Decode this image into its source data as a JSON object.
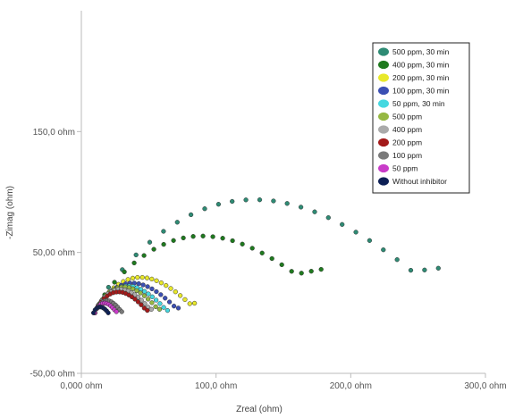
{
  "chart_data": {
    "type": "scatter",
    "title": "",
    "xlabel": "Zreal (ohm)",
    "ylabel": "-Zimag (ohm)",
    "xlim": [
      0,
      300
    ],
    "ylim": [
      -50,
      250
    ],
    "x_ticks": [
      {
        "value": 0,
        "label": "0,000 ohm"
      },
      {
        "value": 100,
        "label": "100,0 ohm"
      },
      {
        "value": 200,
        "label": "200,0 ohm"
      },
      {
        "value": 300,
        "label": "300,0 ohm"
      }
    ],
    "y_ticks": [
      {
        "value": -50,
        "label": "-50,00 ohm"
      },
      {
        "value": 50,
        "label": "50,00 ohm"
      },
      {
        "value": 150,
        "label": "150,0 ohm"
      }
    ],
    "grid": false,
    "legend_position": "top-right",
    "series": [
      {
        "name": "500 ppm, 30 min",
        "color": "#2e8b74",
        "start": 10,
        "end": 265,
        "peak": 87,
        "tail": 37,
        "n": 26
      },
      {
        "name": "400 ppm, 30 min",
        "color": "#1f7a1f",
        "start": 10,
        "end": 178,
        "peak": 57,
        "tail": 36,
        "n": 24
      },
      {
        "name": "200 ppm, 30 min",
        "color": "#e8e82a",
        "start": 10,
        "end": 84,
        "peak": 28,
        "tail": 8,
        "n": 22
      },
      {
        "name": "100 ppm, 30 min",
        "color": "#3b4fb3",
        "start": 10,
        "end": 72,
        "peak": 24,
        "tail": 4,
        "n": 20
      },
      {
        "name": " 50 ppm, 30 min",
        "color": "#45d8e0",
        "start": 10,
        "end": 64,
        "peak": 22,
        "tail": 2,
        "n": 20
      },
      {
        "name": "500 ppm",
        "color": "#96b843",
        "start": 10,
        "end": 58,
        "peak": 21,
        "tail": 3,
        "n": 18
      },
      {
        "name": "400 ppm",
        "color": "#aaaaaa",
        "start": 10,
        "end": 52,
        "peak": 19,
        "tail": 3,
        "n": 18
      },
      {
        "name": "200 ppm",
        "color": "#a31a1a",
        "start": 10,
        "end": 49,
        "peak": 17,
        "tail": 2,
        "n": 18
      },
      {
        "name": "100 ppm",
        "color": "#7a7a7a",
        "start": 10,
        "end": 30,
        "peak": 10,
        "tail": 1,
        "n": 14
      },
      {
        "name": "50 ppm",
        "color": "#c93cc9",
        "start": 10,
        "end": 26,
        "peak": 8,
        "tail": 1,
        "n": 12
      },
      {
        "name": "Without inhibitor",
        "color": "#0d1f55",
        "start": 9,
        "end": 20,
        "peak": 5,
        "tail": 0,
        "n": 10
      }
    ]
  }
}
